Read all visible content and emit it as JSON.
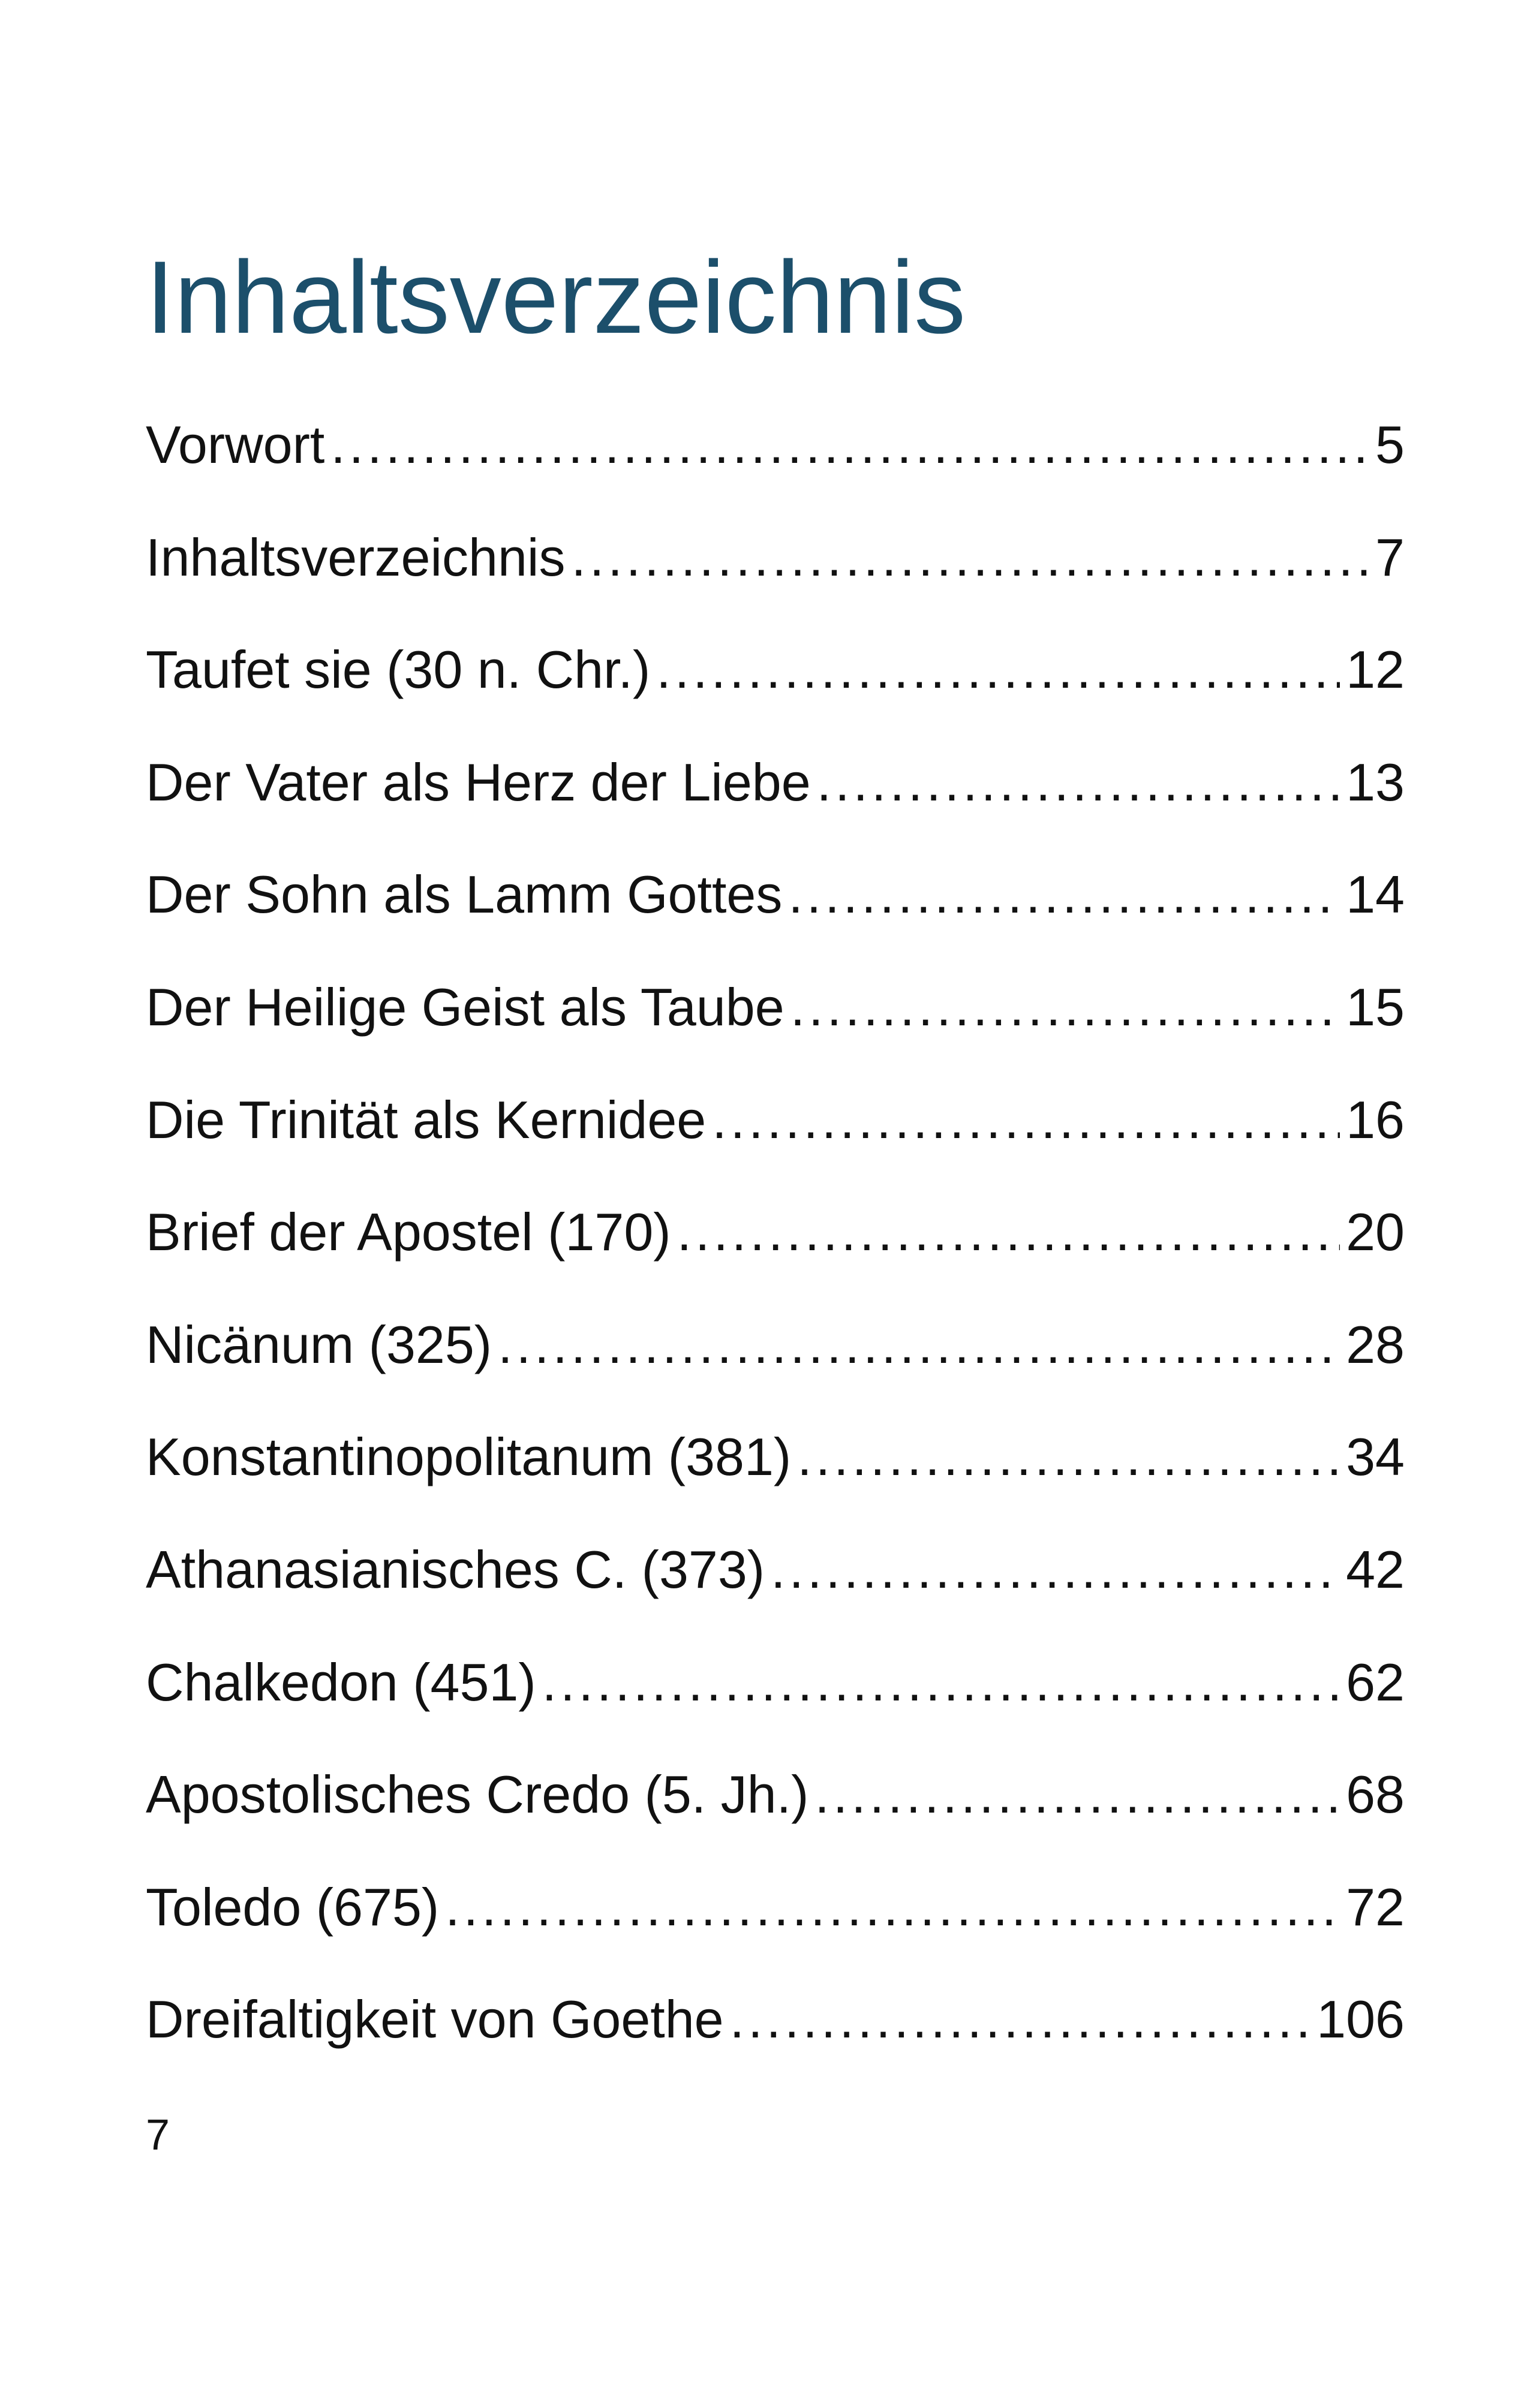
{
  "title": "Inhaltsverzeichnis",
  "toc": [
    {
      "label": "Vorwort",
      "page": "5"
    },
    {
      "label": "Inhaltsverzeichnis",
      "page": "7"
    },
    {
      "label": "Taufet sie (30 n. Chr.)",
      "page": "12"
    },
    {
      "label": "Der Vater als Herz der Liebe",
      "page": "13"
    },
    {
      "label": "Der Sohn als Lamm Gottes",
      "page": "14"
    },
    {
      "label": "Der Heilige Geist als Taube",
      "page": "15"
    },
    {
      "label": "Die Trinität als Kernidee",
      "page": "16"
    },
    {
      "label": "Brief der Apostel (170)",
      "page": "20"
    },
    {
      "label": "Nicänum (325)",
      "page": "28"
    },
    {
      "label": "Konstantinopolitanum (381)",
      "page": "34"
    },
    {
      "label": "Athanasianisches C. (373)",
      "page": "42"
    },
    {
      "label": "Chalkedon (451)",
      "page": "62"
    },
    {
      "label": "Apostolisches Credo (5. Jh.)",
      "page": "68"
    },
    {
      "label": "Toledo (675)",
      "page": "72"
    },
    {
      "label": "Dreifaltigkeit von Goethe",
      "page": "106"
    }
  ],
  "footer": {
    "page_number": "7"
  },
  "colors": {
    "title": "#1c4f6b",
    "text": "#111111",
    "background": "#ffffff"
  }
}
